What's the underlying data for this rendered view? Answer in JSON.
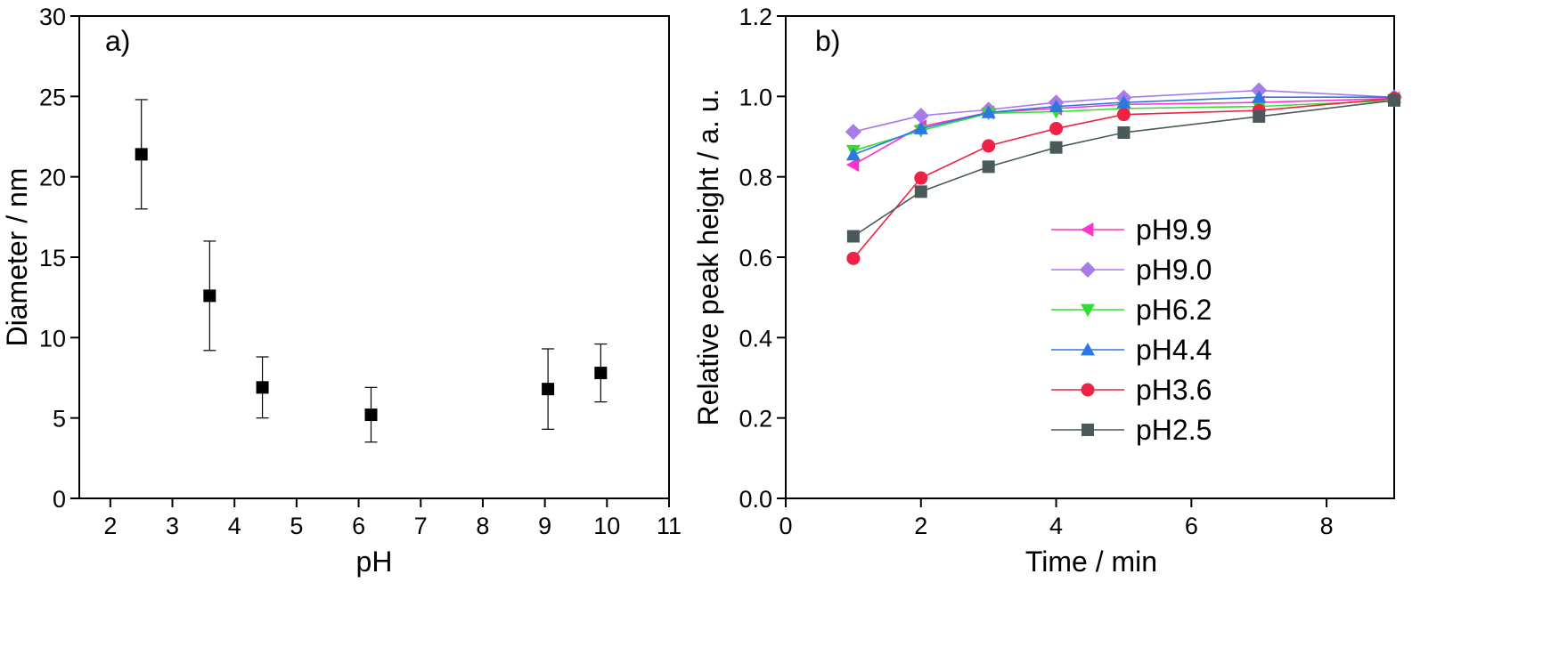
{
  "chart_data": [
    {
      "type": "scatter",
      "panel_label": "a)",
      "xlabel": "pH",
      "ylabel": "Diameter / nm",
      "xlim": [
        1.5,
        11
      ],
      "ylim": [
        0,
        30
      ],
      "xticks": [
        2,
        3,
        4,
        5,
        6,
        7,
        8,
        9,
        10,
        11
      ],
      "yticks": [
        0,
        5,
        10,
        15,
        20,
        25,
        30
      ],
      "grid": false,
      "marker": "square",
      "color": "#000000",
      "points": [
        {
          "x": 2.5,
          "y": 21.4,
          "err_low": 18.0,
          "err_high": 24.8
        },
        {
          "x": 3.6,
          "y": 12.6,
          "err_low": 9.2,
          "err_high": 16.0
        },
        {
          "x": 4.45,
          "y": 6.9,
          "err_low": 5.0,
          "err_high": 8.8
        },
        {
          "x": 6.2,
          "y": 5.2,
          "err_low": 3.5,
          "err_high": 6.9
        },
        {
          "x": 9.05,
          "y": 6.8,
          "err_low": 4.3,
          "err_high": 9.3
        },
        {
          "x": 9.9,
          "y": 7.8,
          "err_low": 6.0,
          "err_high": 9.6
        }
      ]
    },
    {
      "type": "line",
      "panel_label": "b)",
      "xlabel": "Time / min",
      "ylabel": "Relative peak height / a. u.",
      "xlim": [
        0,
        9
      ],
      "ylim": [
        0,
        1.2
      ],
      "xticks": [
        0,
        2,
        4,
        6,
        8
      ],
      "yticks": [
        0.0,
        0.2,
        0.4,
        0.6,
        0.8,
        1.0,
        1.2
      ],
      "ytick_labels": [
        "0.0",
        "0.2",
        "0.4",
        "0.6",
        "0.8",
        "1.0",
        "1.2"
      ],
      "grid": false,
      "legend_position": "center-right",
      "x": [
        1,
        2,
        3,
        4,
        5,
        7,
        9
      ],
      "series": [
        {
          "name": "pH9.9",
          "color": "#ff33cc",
          "marker": "triangle-left",
          "values": [
            0.83,
            0.925,
            0.96,
            0.97,
            0.98,
            0.985,
            0.995
          ]
        },
        {
          "name": "pH9.0",
          "color": "#a77be8",
          "marker": "diamond",
          "values": [
            0.912,
            0.952,
            0.967,
            0.985,
            0.997,
            1.015,
            0.998
          ]
        },
        {
          "name": "pH6.2",
          "color": "#33dd33",
          "marker": "triangle-down",
          "values": [
            0.865,
            0.915,
            0.958,
            0.962,
            0.97,
            0.975,
            0.99
          ]
        },
        {
          "name": "pH4.4",
          "color": "#2b78e4",
          "marker": "triangle-up",
          "values": [
            0.855,
            0.92,
            0.96,
            0.975,
            0.985,
            0.998,
            0.998
          ]
        },
        {
          "name": "pH3.6",
          "color": "#ee2244",
          "marker": "circle",
          "values": [
            0.597,
            0.797,
            0.877,
            0.92,
            0.955,
            0.965,
            0.995
          ]
        },
        {
          "name": "pH2.5",
          "color": "#4a5a5a",
          "marker": "square",
          "values": [
            0.652,
            0.763,
            0.825,
            0.873,
            0.91,
            0.95,
            0.99
          ]
        }
      ]
    }
  ]
}
